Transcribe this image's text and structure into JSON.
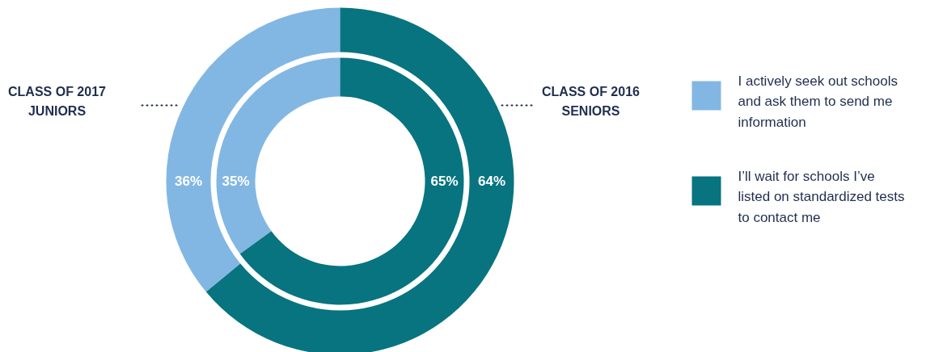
{
  "chart_data": {
    "type": "donut",
    "categories": [
      "I actively seek out schools and ask them to send me information",
      "I’ll wait for schools I’ve listed on standardized tests to contact me"
    ],
    "colors": [
      "#82b7e3",
      "#077480"
    ],
    "series": [
      {
        "values": [
          36,
          64
        ],
        "value_labels": [
          "36%",
          "64%"
        ]
      },
      {
        "values": [
          35,
          65
        ],
        "value_labels": [
          "35%",
          "65%"
        ]
      }
    ],
    "annotations": [
      "CLASS OF 2017 JUNIORS",
      "CLASS OF 2016 SENIORS"
    ],
    "legend": "right"
  }
}
